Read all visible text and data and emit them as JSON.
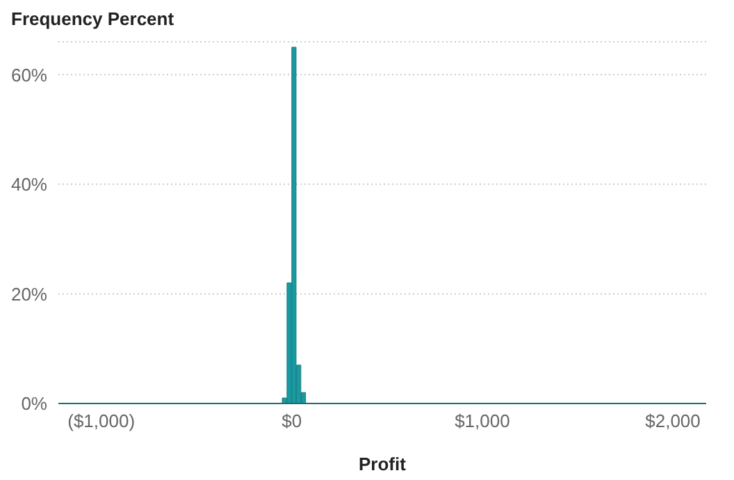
{
  "chart_data": {
    "type": "histogram",
    "title": "Frequency Percent",
    "xlabel": "Profit",
    "color": "#1a9aa0",
    "bins": [
      -1225,
      -1200,
      -1175,
      -1150,
      -1125,
      -1100,
      -1075,
      -1050,
      -1025,
      -1000,
      -975,
      -950,
      -925,
      -900,
      -875,
      -850,
      -825,
      -800,
      -775,
      -750,
      -725,
      -700,
      -675,
      -650,
      -625,
      -600,
      -575,
      -550,
      -525,
      -500,
      -475,
      -450,
      -425,
      -400,
      -375,
      -350,
      -325,
      -300,
      -275,
      -250,
      -225,
      -200,
      -175,
      -150,
      -125,
      -100,
      -75,
      -50,
      -25,
      0,
      25,
      50,
      75,
      100,
      125,
      150,
      175,
      200,
      225,
      250,
      275,
      300,
      325,
      350,
      375,
      400,
      425,
      450,
      475,
      500,
      525,
      550,
      575,
      600,
      625,
      650,
      675,
      700,
      725,
      750,
      775,
      800,
      825,
      850,
      875,
      900,
      925,
      950,
      975,
      1000,
      1025,
      1050,
      1075,
      1100,
      1125,
      1150,
      1175,
      1200,
      1225,
      1250,
      1275,
      1300,
      1325,
      1350,
      1375,
      1400,
      1425,
      1450,
      1475,
      1500,
      1525,
      1550,
      1575,
      1600,
      1625,
      1650,
      1675,
      1700,
      1725,
      1750,
      1775,
      1800,
      1825,
      1850,
      1875,
      1900,
      1925,
      1950,
      1975,
      2000,
      2025,
      2050,
      2075,
      2100,
      2125,
      2150,
      2175
    ],
    "values": [
      0,
      0,
      0,
      0,
      0,
      0,
      0,
      0,
      0,
      0,
      0,
      0,
      0,
      0,
      0,
      0,
      0,
      0,
      0,
      0,
      0,
      0,
      0,
      0,
      0,
      0,
      0,
      0,
      0,
      0,
      0,
      0,
      0,
      0,
      0,
      0,
      0,
      0,
      0,
      0,
      0,
      0,
      0,
      0,
      0,
      0,
      0,
      1,
      22,
      65,
      7,
      2,
      0,
      0,
      0,
      0,
      0,
      0,
      0,
      0,
      0,
      0,
      0,
      0,
      0,
      0,
      0,
      0,
      0,
      0,
      0,
      0,
      0,
      0,
      0,
      0,
      0,
      0,
      0,
      0,
      0,
      0,
      0,
      0,
      0,
      0,
      0,
      0,
      0,
      0,
      0,
      0,
      0,
      0,
      0,
      0,
      0,
      0,
      0,
      0,
      0,
      0,
      0,
      0,
      0,
      0,
      0,
      0,
      0,
      0,
      0,
      0,
      0,
      0,
      0,
      0,
      0,
      0,
      0,
      0,
      0,
      0,
      0,
      0,
      0,
      0,
      0,
      0,
      0,
      0,
      0,
      0,
      0,
      0,
      0,
      0
    ],
    "xlim": [
      -1225,
      2175
    ],
    "xticks": [
      {
        "value": -1000,
        "label": "($1,000)"
      },
      {
        "value": 0,
        "label": "$0"
      },
      {
        "value": 1000,
        "label": "$1,000"
      },
      {
        "value": 2000,
        "label": "$2,000"
      }
    ],
    "ylim": [
      0,
      66
    ],
    "yticks": [
      {
        "value": 0,
        "label": "0%"
      },
      {
        "value": 20,
        "label": "20%"
      },
      {
        "value": 40,
        "label": "40%"
      },
      {
        "value": 60,
        "label": "60%"
      }
    ],
    "grid": "y"
  }
}
